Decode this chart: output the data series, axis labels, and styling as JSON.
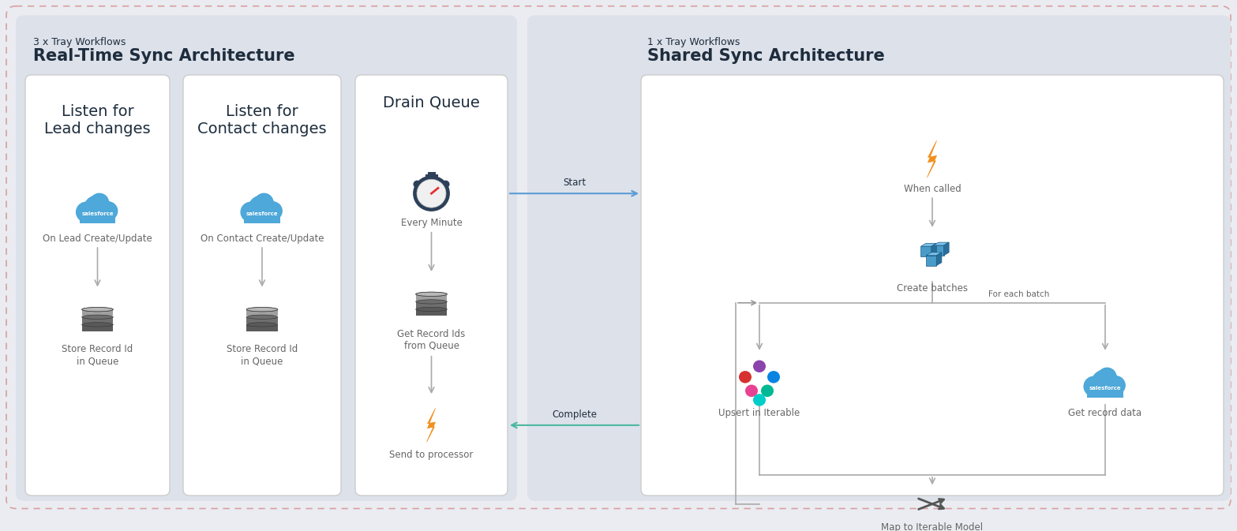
{
  "bg_color": "#eaecf1",
  "outer_border_color": "#d9a0a0",
  "light_panel_color": "#dde1ea",
  "white_box_color": "#ffffff",
  "white_box_border": "#d0d0d0",
  "dark_text": "#1e2d3d",
  "gray_text": "#666666",
  "arrow_color": "#999999",
  "blue_arrow_color": "#5b9bd5",
  "teal_arrow_color": "#4ab8a0",
  "orange_color": "#f0901f",
  "salesforce_blue": "#4ea8d9",
  "left_section_label": "3 x Tray Workflows",
  "left_section_title": "Real-Time Sync Architecture",
  "right_section_label": "1 x Tray Workflows",
  "right_section_title": "Shared Sync Architecture",
  "box1_title": "Listen for\nLead changes",
  "box1_sub1": "On Lead Create/Update",
  "box1_sub2": "Store Record Id\nin Queue",
  "box2_title": "Listen for\nContact changes",
  "box2_sub1": "On Contact Create/Update",
  "box2_sub2": "Store Record Id\nin Queue",
  "box3_title": "Drain Queue",
  "box3_sub1": "Every Minute",
  "box3_sub2": "Get Record Ids\nfrom Queue",
  "box3_sub3": "Send to processor",
  "right_node1": "When called",
  "right_node2": "Create batches",
  "right_node3": "Upsert in Iterable",
  "right_node4": "Get record data",
  "right_node5": "Map to Iterable Model",
  "for_each_label": "For each batch",
  "start_label": "Start",
  "complete_label": "Complete"
}
